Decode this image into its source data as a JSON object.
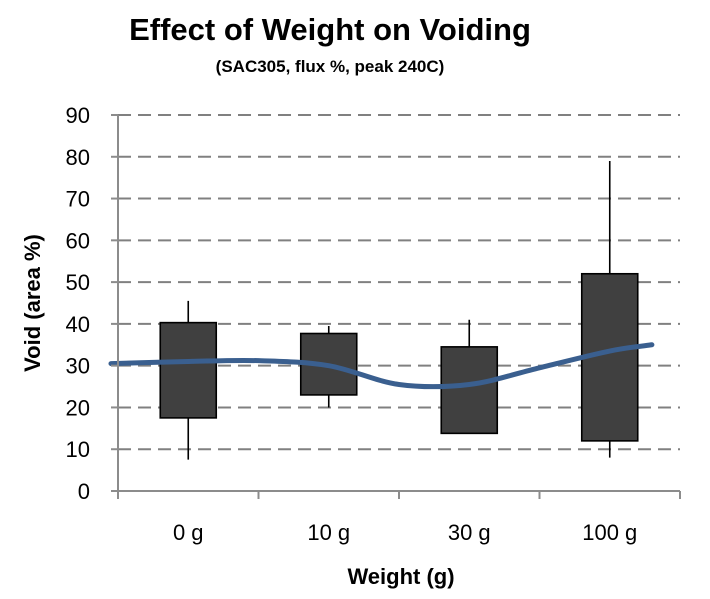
{
  "chart_data": {
    "type": "box",
    "title": "Effect of Weight on Voiding",
    "subtitle": "(SAC305, flux %, peak 240C)",
    "xlabel": "Weight (g)",
    "ylabel": "Void (area %)",
    "ylim": [
      0,
      90
    ],
    "yticks": [
      0,
      10,
      20,
      30,
      40,
      50,
      60,
      70,
      80,
      90
    ],
    "grid": "dashed-horizontal",
    "categories": [
      "0 g",
      "10 g",
      "30 g",
      "100 g"
    ],
    "boxes": [
      {
        "category": "0 g",
        "min": 7.5,
        "q1": 17.5,
        "q3": 40.3,
        "max": 45.5
      },
      {
        "category": "10 g",
        "min": 20.0,
        "q1": 23.0,
        "q3": 37.7,
        "max": 39.5
      },
      {
        "category": "30 g",
        "min": 13.8,
        "q1": 13.8,
        "q3": 34.5,
        "max": 41.0
      },
      {
        "category": "100 g",
        "min": 8.0,
        "q1": 12.0,
        "q3": 52.0,
        "max": 79.0
      }
    ],
    "trend_line": {
      "name": "trend",
      "x": [
        -0.55,
        0.0,
        0.5,
        1.0,
        1.5,
        2.0,
        2.5,
        3.0,
        3.3
      ],
      "y": [
        30.5,
        31.0,
        31.2,
        30.0,
        25.5,
        25.5,
        29.5,
        33.5,
        35.0
      ]
    },
    "colors": {
      "box": "#404040",
      "trend": "#3a5f8f",
      "grid": "#808080"
    }
  }
}
